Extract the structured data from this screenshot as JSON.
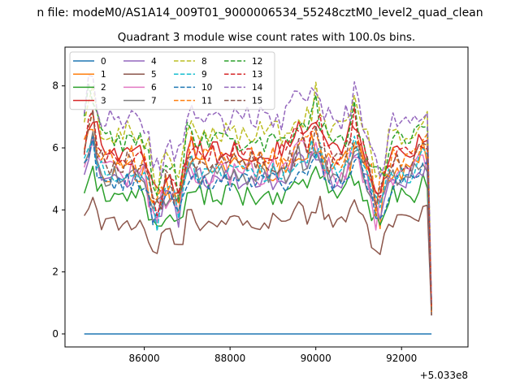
{
  "chart_data": {
    "type": "line",
    "suptitle": "n file: modeM0/AS1A14_009T01_9000006534_55248cztM0_level2_quad_clean",
    "title": "Quadrant 3 module wise count rates with 100.0s bins.",
    "xlabel": "",
    "ylabel": "",
    "x_offset_label": "+5.033e8",
    "x_offset": 503300000,
    "xlim": [
      84150,
      93550
    ],
    "ylim": [
      -0.42,
      9.25
    ],
    "x_ticks": [
      86000,
      88000,
      90000,
      92000
    ],
    "y_ticks": [
      0,
      2,
      4,
      6,
      8
    ],
    "x_tick_labels": [
      "86000",
      "88000",
      "90000",
      "92000"
    ],
    "y_tick_labels": [
      "0",
      "2",
      "4",
      "6",
      "8"
    ],
    "x_range": [
      84600,
      92700
    ],
    "x_step": 100,
    "legend_position": "upper-left",
    "legend_columns": 4,
    "series": [
      {
        "name": "0",
        "color": "#1f77b4",
        "dash": "solid",
        "base": 0.0,
        "amp": 0.0,
        "seed": 0
      },
      {
        "name": "1",
        "color": "#ff7f0e",
        "dash": "solid",
        "base": 5.3,
        "amp": 0.4,
        "seed": 1
      },
      {
        "name": "2",
        "color": "#2ca02c",
        "dash": "solid",
        "base": 4.5,
        "amp": 0.35,
        "seed": 2
      },
      {
        "name": "3",
        "color": "#d62728",
        "dash": "solid",
        "base": 5.9,
        "amp": 0.35,
        "seed": 3
      },
      {
        "name": "4",
        "color": "#9467bd",
        "dash": "solid",
        "base": 5.0,
        "amp": 0.35,
        "seed": 4
      },
      {
        "name": "5",
        "color": "#8c564b",
        "dash": "solid",
        "base": 3.6,
        "amp": 0.3,
        "seed": 5
      },
      {
        "name": "6",
        "color": "#e377c2",
        "dash": "solid",
        "base": 5.2,
        "amp": 0.45,
        "seed": 6
      },
      {
        "name": "7",
        "color": "#7f7f7f",
        "dash": "solid",
        "base": 5.1,
        "amp": 0.35,
        "seed": 7
      },
      {
        "name": "8",
        "color": "#bcbd22",
        "dash": "dashed",
        "base": 6.5,
        "amp": 0.4,
        "seed": 8
      },
      {
        "name": "9",
        "color": "#17becf",
        "dash": "dashed",
        "base": 5.2,
        "amp": 0.35,
        "seed": 9
      },
      {
        "name": "10",
        "color": "#1f77b4",
        "dash": "dashed",
        "base": 4.9,
        "amp": 0.35,
        "seed": 10
      },
      {
        "name": "11",
        "color": "#ff7f0e",
        "dash": "dashed",
        "base": 5.7,
        "amp": 0.4,
        "seed": 11
      },
      {
        "name": "12",
        "color": "#2ca02c",
        "dash": "dashed",
        "base": 6.2,
        "amp": 0.35,
        "seed": 12
      },
      {
        "name": "13",
        "color": "#d62728",
        "dash": "dashed",
        "base": 5.8,
        "amp": 0.35,
        "seed": 13
      },
      {
        "name": "14",
        "color": "#9467bd",
        "dash": "dashed",
        "base": 6.9,
        "amp": 0.45,
        "seed": 14
      },
      {
        "name": "15",
        "color": "#8c564b",
        "dash": "dashed",
        "base": 5.5,
        "amp": 0.4,
        "seed": 15
      }
    ]
  }
}
